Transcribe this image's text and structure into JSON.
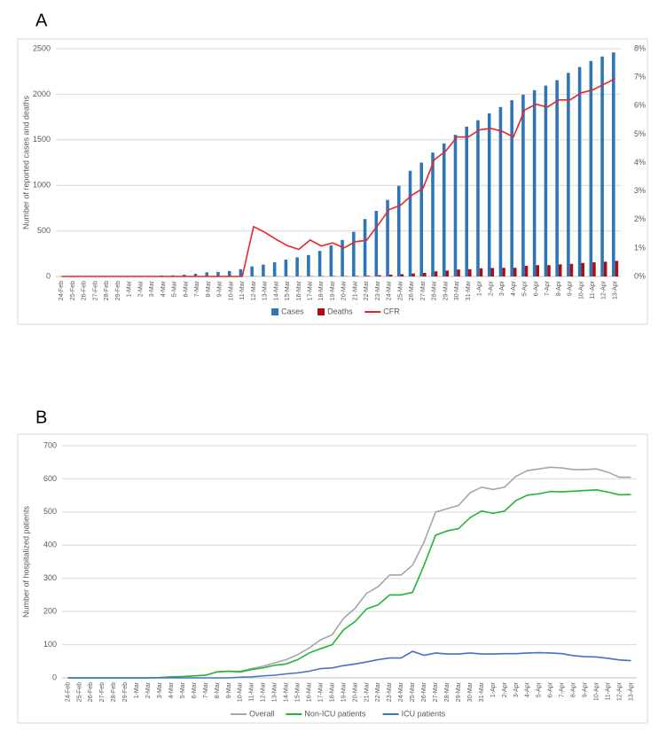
{
  "panels": [
    "A",
    "B"
  ],
  "chart_data": [
    {
      "type": "bar",
      "ylabel": "Number of reported cases and deaths",
      "categories": [
        "24-Feb",
        "25-Feb",
        "26-Feb",
        "27-Feb",
        "28-Feb",
        "29-Feb",
        "1-Mar",
        "2-Mar",
        "3-Mar",
        "4-Mar",
        "5-Mar",
        "6-Mar",
        "7-Mar",
        "8-Mar",
        "9-Mar",
        "10-Mar",
        "11-Mar",
        "12-Mar",
        "13-Mar",
        "14-Mar",
        "15-Mar",
        "16-Mar",
        "17-Mar",
        "18-Mar",
        "19-Mar",
        "20-Mar",
        "21-Mar",
        "22-Mar",
        "23-Mar",
        "24-Mar",
        "25-Mar",
        "26-Mar",
        "27-Mar",
        "28-Mar",
        "29-Mar",
        "30-Mar",
        "31-Mar",
        "1-Apr",
        "2-Apr",
        "3-Apr",
        "4-Apr",
        "5-Apr",
        "6-Apr",
        "7-Apr",
        "8-Apr",
        "9-Apr",
        "10-Apr",
        "11-Apr",
        "12-Apr",
        "13-Apr"
      ],
      "ylim": [
        0,
        2500
      ],
      "yticks": [
        0,
        500,
        1000,
        1500,
        2000,
        2500
      ],
      "y2lim": [
        0,
        8
      ],
      "y2ticks": [
        {
          "value": 0,
          "label": "0%"
        },
        {
          "value": 1,
          "label": "1%"
        },
        {
          "value": 2,
          "label": "2%"
        },
        {
          "value": 3,
          "label": "3%"
        },
        {
          "value": 4,
          "label": "4%"
        },
        {
          "value": 5,
          "label": "5%"
        },
        {
          "value": 6,
          "label": "6%"
        },
        {
          "value": 7,
          "label": "7%"
        },
        {
          "value": 8,
          "label": "8%"
        }
      ],
      "grid": true,
      "legend": "bottom",
      "series": [
        {
          "name": "Cases",
          "color": "#2e75b6",
          "values": [
            0,
            0,
            0,
            0,
            0,
            0,
            0,
            0,
            0,
            10,
            12,
            20,
            30,
            45,
            50,
            60,
            80,
            110,
            130,
            155,
            185,
            210,
            235,
            280,
            340,
            400,
            490,
            630,
            720,
            840,
            995,
            1160,
            1250,
            1360,
            1460,
            1555,
            1645,
            1715,
            1790,
            1860,
            1935,
            1995,
            2045,
            2095,
            2155,
            2235,
            2300,
            2365,
            2415,
            2460
          ]
        },
        {
          "name": "Deaths",
          "color": "#a50f15",
          "values": [
            0,
            0,
            0,
            0,
            0,
            0,
            0,
            0,
            0,
            0,
            0,
            0,
            0,
            0,
            0,
            0,
            0,
            2,
            2,
            2,
            2,
            2,
            3,
            3,
            4,
            4,
            6,
            8,
            13,
            20,
            25,
            33,
            39,
            56,
            64,
            76,
            80,
            89,
            93,
            95,
            95,
            117,
            124,
            124,
            133,
            138,
            148,
            155,
            162,
            171
          ]
        },
        {
          "name": "CFR",
          "color": "#e8262b",
          "type": "line",
          "axis": "y2",
          "values": [
            0,
            0,
            0,
            0,
            0,
            0,
            0,
            0,
            0,
            0,
            0,
            0,
            0,
            0,
            0,
            0,
            0,
            1.75,
            1.55,
            1.3,
            1.08,
            0.95,
            1.28,
            1.07,
            1.18,
            1.0,
            1.22,
            1.27,
            1.8,
            2.35,
            2.5,
            2.85,
            3.1,
            4.1,
            4.4,
            4.9,
            4.9,
            5.15,
            5.2,
            5.1,
            4.9,
            5.85,
            6.05,
            5.95,
            6.2,
            6.2,
            6.45,
            6.55,
            6.75,
            6.95
          ]
        }
      ]
    },
    {
      "type": "line",
      "ylabel": "Number of hospitalized patients",
      "categories": [
        "24-Feb",
        "25-Feb",
        "26-Feb",
        "27-Feb",
        "28-Feb",
        "29-Feb",
        "1-Mar",
        "2-Mar",
        "3-Mar",
        "4-Mar",
        "5-Mar",
        "6-Mar",
        "7-Mar",
        "8-Mar",
        "9-Mar",
        "10-Mar",
        "11-Mar",
        "12-Mar",
        "13-Mar",
        "14-Mar",
        "15-Mar",
        "16-Mar",
        "17-Mar",
        "18-Mar",
        "19-Mar",
        "20-Mar",
        "21-Mar",
        "22-Mar",
        "23-Mar",
        "24-Mar",
        "25-Mar",
        "26-Mar",
        "27-Mar",
        "28-Mar",
        "29-Mar",
        "30-Mar",
        "31-Mar",
        "1-Apr",
        "2-Apr",
        "3-Apr",
        "4-Apr",
        "5-Apr",
        "6-Apr",
        "7-Apr",
        "8-Apr",
        "9-Apr",
        "10-Apr",
        "11-Apr",
        "12-Apr",
        "13-Apr"
      ],
      "ylim": [
        0,
        700
      ],
      "yticks": [
        0,
        100,
        200,
        300,
        400,
        500,
        600,
        700
      ],
      "grid": true,
      "legend": "bottom",
      "series": [
        {
          "name": "Overall",
          "color": "#a6a6a6",
          "values": [
            0,
            0,
            0,
            0,
            0,
            0,
            0,
            0,
            1,
            3,
            4,
            6,
            8,
            18,
            20,
            20,
            28,
            35,
            45,
            55,
            70,
            90,
            115,
            130,
            180,
            210,
            255,
            275,
            310,
            310,
            340,
            410,
            500,
            510,
            520,
            558,
            575,
            568,
            575,
            608,
            625,
            630,
            635,
            633,
            628,
            628,
            630,
            620,
            605,
            605
          ]
        },
        {
          "name": "Non-ICU patients",
          "color": "#1fb53b",
          "values": [
            0,
            0,
            0,
            0,
            0,
            0,
            0,
            0,
            1,
            3,
            4,
            6,
            8,
            18,
            20,
            18,
            25,
            30,
            38,
            42,
            55,
            75,
            88,
            100,
            145,
            170,
            208,
            220,
            250,
            250,
            258,
            340,
            430,
            443,
            450,
            483,
            503,
            496,
            503,
            535,
            551,
            555,
            562,
            561,
            563,
            565,
            567,
            560,
            552,
            553
          ]
        },
        {
          "name": "ICU patients",
          "color": "#4472c4",
          "values": [
            0,
            0,
            0,
            0,
            0,
            0,
            0,
            0,
            0,
            0,
            0,
            0,
            0,
            0,
            0,
            2,
            3,
            6,
            8,
            12,
            15,
            20,
            28,
            30,
            37,
            42,
            48,
            55,
            60,
            60,
            80,
            68,
            75,
            72,
            72,
            75,
            72,
            72,
            73,
            73,
            75,
            76,
            75,
            73,
            67,
            64,
            63,
            59,
            54,
            52
          ]
        }
      ]
    }
  ]
}
